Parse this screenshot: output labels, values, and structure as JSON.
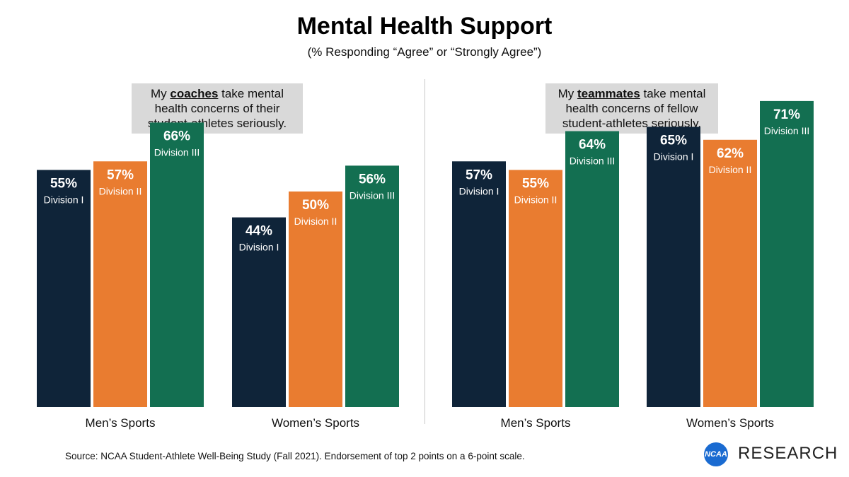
{
  "chart_data": {
    "type": "bar",
    "title": "Mental Health Support",
    "subtitle": "(% Responding  “Agree” or “Strongly Agree”)",
    "ylim": [
      0,
      75
    ],
    "panels": [
      {
        "question_prefix": "My ",
        "question_emph": "coaches",
        "question_suffix": " take mental health concerns of their student-athletes seriously.",
        "categories": [
          "Men’s Sports",
          "Women’s Sports"
        ],
        "series": [
          {
            "name": "Division I",
            "values": [
              55,
              44
            ]
          },
          {
            "name": "Division II",
            "values": [
              57,
              50
            ]
          },
          {
            "name": "Division III",
            "values": [
              66,
              56
            ]
          }
        ]
      },
      {
        "question_prefix": "My ",
        "question_emph": "teammates",
        "question_suffix": " take mental health concerns of fellow student-athletes seriously.",
        "categories": [
          "Men’s Sports",
          "Women’s Sports"
        ],
        "series": [
          {
            "name": "Division I",
            "values": [
              57,
              65
            ]
          },
          {
            "name": "Division II",
            "values": [
              55,
              62
            ]
          },
          {
            "name": "Division III",
            "values": [
              64,
              71
            ]
          }
        ]
      }
    ],
    "colors": [
      "#0f2439",
      "#e97c30",
      "#136f51"
    ]
  },
  "source": "Source: NCAA Student-Athlete Well-Being Study (Fall 2021). Endorsement of top 2 points on a 6-point scale.",
  "logo": {
    "badge": "NCAA",
    "text": "RESEARCH"
  }
}
